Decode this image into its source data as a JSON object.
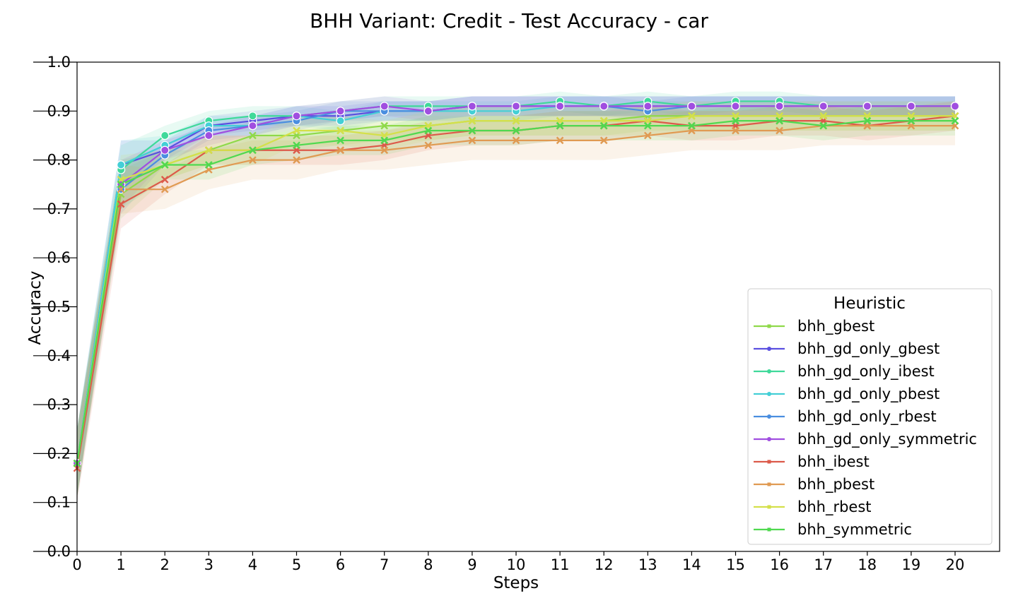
{
  "chart_data": {
    "type": "line",
    "title": "BHH Variant: Credit - Test Accuracy - car",
    "xlabel": "Steps",
    "ylabel": "Accuracy",
    "xlim": [
      0,
      21
    ],
    "ylim": [
      0.0,
      1.0
    ],
    "x": [
      0,
      1,
      2,
      3,
      4,
      5,
      6,
      7,
      8,
      9,
      10,
      11,
      12,
      13,
      14,
      15,
      16,
      17,
      18,
      19,
      20
    ],
    "y_ticks": [
      "0.0",
      "0.1",
      "0.2",
      "0.3",
      "0.4",
      "0.5",
      "0.6",
      "0.7",
      "0.8",
      "0.9",
      "1.0"
    ],
    "x_ticks": [
      "0",
      "1",
      "2",
      "3",
      "4",
      "5",
      "6",
      "7",
      "8",
      "9",
      "10",
      "11",
      "12",
      "13",
      "14",
      "15",
      "16",
      "17",
      "18",
      "19",
      "20"
    ],
    "legend": {
      "title": "Heuristic",
      "placement": "lower-right"
    },
    "grid": false,
    "series": [
      {
        "name": "bhh_gbest",
        "color": "#8fd94a",
        "marker": "x",
        "band": 0.03,
        "values": [
          0.18,
          0.73,
          0.79,
          0.82,
          0.85,
          0.85,
          0.86,
          0.87,
          0.87,
          0.88,
          0.88,
          0.88,
          0.88,
          0.89,
          0.89,
          0.89,
          0.89,
          0.89,
          0.89,
          0.89,
          0.89
        ]
      },
      {
        "name": "bhh_gd_only_gbest",
        "color": "#5a4fe0",
        "marker": "o",
        "band": 0.02,
        "values": [
          0.18,
          0.79,
          0.82,
          0.87,
          0.88,
          0.89,
          0.89,
          0.9,
          0.9,
          0.91,
          0.91,
          0.91,
          0.91,
          0.91,
          0.91,
          0.91,
          0.91,
          0.91,
          0.91,
          0.91,
          0.91
        ]
      },
      {
        "name": "bhh_gd_only_ibest",
        "color": "#3fd99a",
        "marker": "o",
        "band": 0.02,
        "values": [
          0.18,
          0.78,
          0.85,
          0.88,
          0.89,
          0.89,
          0.9,
          0.91,
          0.91,
          0.91,
          0.91,
          0.92,
          0.91,
          0.92,
          0.91,
          0.92,
          0.92,
          0.91,
          0.91,
          0.91,
          0.91
        ]
      },
      {
        "name": "bhh_gd_only_pbest",
        "color": "#43cfd6",
        "marker": "o",
        "band": 0.02,
        "values": [
          0.18,
          0.79,
          0.83,
          0.87,
          0.87,
          0.89,
          0.88,
          0.9,
          0.9,
          0.9,
          0.9,
          0.91,
          0.91,
          0.91,
          0.91,
          0.91,
          0.91,
          0.91,
          0.91,
          0.91,
          0.91
        ]
      },
      {
        "name": "bhh_gd_only_rbest",
        "color": "#4a8ee0",
        "marker": "o",
        "band": 0.02,
        "values": [
          0.18,
          0.74,
          0.81,
          0.86,
          0.87,
          0.88,
          0.9,
          0.9,
          0.9,
          0.91,
          0.91,
          0.91,
          0.91,
          0.9,
          0.91,
          0.91,
          0.91,
          0.91,
          0.91,
          0.91,
          0.91
        ]
      },
      {
        "name": "bhh_gd_only_symmetric",
        "color": "#a04ee0",
        "marker": "o",
        "band": 0.02,
        "values": [
          0.18,
          0.75,
          0.82,
          0.85,
          0.87,
          0.89,
          0.9,
          0.91,
          0.9,
          0.91,
          0.91,
          0.91,
          0.91,
          0.91,
          0.91,
          0.91,
          0.91,
          0.91,
          0.91,
          0.91,
          0.91
        ]
      },
      {
        "name": "bhh_ibest",
        "color": "#dc5a4a",
        "marker": "x",
        "band": 0.03,
        "values": [
          0.17,
          0.71,
          0.76,
          0.82,
          0.82,
          0.82,
          0.82,
          0.83,
          0.85,
          0.86,
          0.86,
          0.87,
          0.87,
          0.88,
          0.87,
          0.87,
          0.88,
          0.88,
          0.87,
          0.88,
          0.89
        ]
      },
      {
        "name": "bhh_pbest",
        "color": "#e09a52",
        "marker": "x",
        "band": 0.04,
        "values": [
          0.18,
          0.74,
          0.74,
          0.78,
          0.8,
          0.8,
          0.82,
          0.82,
          0.83,
          0.84,
          0.84,
          0.84,
          0.84,
          0.85,
          0.86,
          0.86,
          0.86,
          0.87,
          0.87,
          0.87,
          0.87
        ]
      },
      {
        "name": "bhh_rbest",
        "color": "#d4e04a",
        "marker": "x",
        "band": 0.03,
        "values": [
          0.18,
          0.76,
          0.79,
          0.82,
          0.82,
          0.86,
          0.86,
          0.85,
          0.87,
          0.88,
          0.88,
          0.88,
          0.88,
          0.88,
          0.89,
          0.89,
          0.89,
          0.89,
          0.89,
          0.89,
          0.89
        ]
      },
      {
        "name": "bhh_symmetric",
        "color": "#4fd94f",
        "marker": "x",
        "band": 0.03,
        "values": [
          0.18,
          0.75,
          0.79,
          0.79,
          0.82,
          0.83,
          0.84,
          0.84,
          0.86,
          0.86,
          0.86,
          0.87,
          0.87,
          0.87,
          0.87,
          0.88,
          0.88,
          0.87,
          0.88,
          0.88,
          0.88
        ]
      }
    ]
  }
}
